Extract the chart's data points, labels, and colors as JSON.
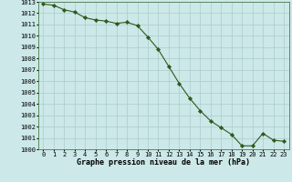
{
  "x": [
    0,
    1,
    2,
    3,
    4,
    5,
    6,
    7,
    8,
    9,
    10,
    11,
    12,
    13,
    14,
    15,
    16,
    17,
    18,
    19,
    20,
    21,
    22,
    23
  ],
  "y": [
    1012.8,
    1012.7,
    1012.3,
    1012.1,
    1011.6,
    1011.4,
    1011.3,
    1011.1,
    1011.2,
    1010.9,
    1009.9,
    1008.8,
    1007.3,
    1005.8,
    1004.5,
    1003.4,
    1002.5,
    1001.9,
    1001.3,
    1000.3,
    1000.3,
    1001.4,
    1000.8,
    1000.7
  ],
  "line_color": "#2d5a1b",
  "marker_color": "#2d5a1b",
  "bg_color": "#cce8e8",
  "grid_color": "#aacccc",
  "xlabel": "Graphe pression niveau de la mer (hPa)",
  "ylim_min": 1000,
  "ylim_max": 1013,
  "xlim_min": -0.5,
  "xlim_max": 23.5,
  "yticks": [
    1000,
    1001,
    1002,
    1003,
    1004,
    1005,
    1006,
    1007,
    1008,
    1009,
    1010,
    1011,
    1012,
    1013
  ],
  "xticks": [
    0,
    1,
    2,
    3,
    4,
    5,
    6,
    7,
    8,
    9,
    10,
    11,
    12,
    13,
    14,
    15,
    16,
    17,
    18,
    19,
    20,
    21,
    22,
    23
  ],
  "xlabel_fontsize": 6.0,
  "tick_fontsize": 5.0,
  "line_width": 0.8,
  "marker_size": 2.2
}
